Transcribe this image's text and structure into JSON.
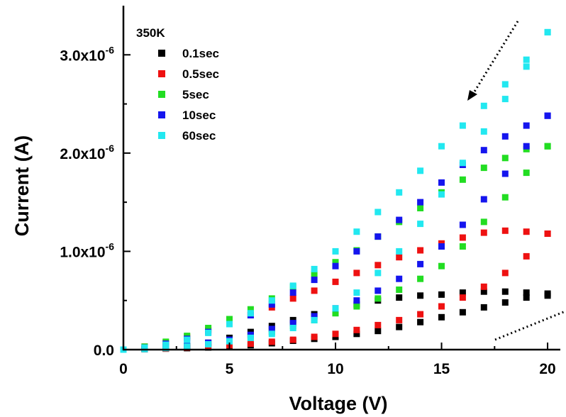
{
  "chart_data": {
    "type": "scatter",
    "xlabel": "Voltage (V)",
    "ylabel": "Current (A)",
    "xlim": [
      0,
      20.6
    ],
    "ylim": [
      0,
      3.5e-06
    ],
    "x_ticks": [
      {
        "value": 0,
        "label": "0"
      },
      {
        "value": 5,
        "label": "5"
      },
      {
        "value": 10,
        "label": "10"
      },
      {
        "value": 15,
        "label": "15"
      },
      {
        "value": 20,
        "label": "20"
      }
    ],
    "y_ticks": [
      {
        "value": 0,
        "label": "0.0",
        "exp": ""
      },
      {
        "value": 1e-06,
        "label": "1.0x10",
        "exp": "-6"
      },
      {
        "value": 2e-06,
        "label": "2.0x10",
        "exp": "-6"
      },
      {
        "value": 3e-06,
        "label": "3.0x10",
        "exp": "-6"
      }
    ],
    "legend_title": "350K",
    "legend_position": "top-left",
    "annotations": [
      "dotted arrow pointing down-left near top-right",
      "dotted line near bottom-right"
    ],
    "series": [
      {
        "name": "0.1sec",
        "color": "#000000",
        "forward": {
          "x": [
            0,
            1,
            2,
            3,
            4,
            5,
            6,
            7,
            8,
            9,
            10,
            11,
            12,
            13,
            14,
            15,
            16,
            17,
            18,
            19,
            20
          ],
          "y": [
            0,
            0.005,
            0.01,
            0.015,
            0.022,
            0.03,
            0.045,
            0.065,
            0.09,
            0.11,
            0.13,
            0.16,
            0.19,
            0.23,
            0.28,
            0.33,
            0.38,
            0.43,
            0.48,
            0.53,
            0.57
          ]
        },
        "reverse": {
          "x": [
            20,
            19,
            18,
            17,
            16,
            15,
            14,
            13,
            12,
            11,
            10,
            9,
            8,
            7,
            6,
            5,
            4,
            3,
            2,
            1,
            0
          ],
          "y": [
            0.55,
            0.58,
            0.59,
            0.59,
            0.58,
            0.56,
            0.55,
            0.53,
            0.5,
            0.46,
            0.41,
            0.36,
            0.3,
            0.24,
            0.18,
            0.12,
            0.07,
            0.035,
            0.015,
            0.005,
            0
          ]
        }
      },
      {
        "name": "0.5sec",
        "color": "#ee1111",
        "forward": {
          "x": [
            0,
            1,
            2,
            3,
            4,
            5,
            6,
            7,
            8,
            9,
            10,
            11,
            12,
            13,
            14,
            15,
            16,
            17,
            18,
            19,
            20
          ],
          "y": [
            0,
            0.005,
            0.01,
            0.02,
            0.03,
            0.045,
            0.06,
            0.08,
            0.1,
            0.13,
            0.16,
            0.2,
            0.25,
            0.3,
            0.36,
            0.44,
            0.53,
            0.64,
            0.78,
            0.95,
            1.18
          ]
        },
        "reverse": {
          "x": [
            20,
            19,
            18,
            17,
            16,
            15,
            14,
            13,
            12,
            11,
            10,
            9,
            8,
            7,
            6,
            5,
            4,
            3,
            2,
            1,
            0
          ],
          "y": [
            1.18,
            1.2,
            1.21,
            1.19,
            1.14,
            1.08,
            1.01,
            0.94,
            0.86,
            0.78,
            0.69,
            0.6,
            0.52,
            0.43,
            0.35,
            0.27,
            0.2,
            0.13,
            0.07,
            0.03,
            0
          ]
        }
      },
      {
        "name": "5sec",
        "color": "#22dd22",
        "forward": {
          "x": [
            0,
            1,
            2,
            3,
            4,
            5,
            6,
            7,
            8,
            9,
            10,
            11,
            12,
            13,
            14,
            15,
            16,
            17,
            18,
            19,
            20
          ],
          "y": [
            0,
            0.01,
            0.02,
            0.035,
            0.06,
            0.09,
            0.13,
            0.18,
            0.24,
            0.3,
            0.37,
            0.44,
            0.52,
            0.61,
            0.72,
            0.85,
            1.05,
            1.3,
            1.55,
            1.8,
            2.07
          ]
        },
        "reverse": {
          "x": [
            20,
            19,
            18,
            17,
            16,
            15,
            14,
            13,
            12,
            11,
            10,
            9,
            8,
            7,
            6,
            5,
            4,
            3,
            2,
            1,
            0
          ],
          "y": [
            2.07,
            2.04,
            1.95,
            1.85,
            1.73,
            1.6,
            1.44,
            1.3,
            1.15,
            1.01,
            0.89,
            0.77,
            0.64,
            0.52,
            0.41,
            0.31,
            0.22,
            0.14,
            0.08,
            0.03,
            0
          ]
        }
      },
      {
        "name": "10sec",
        "color": "#1515ee",
        "forward": {
          "x": [
            0,
            1,
            2,
            3,
            4,
            5,
            6,
            7,
            8,
            9,
            10,
            11,
            12,
            13,
            14,
            15,
            16,
            17,
            18,
            19,
            20
          ],
          "y": [
            0,
            0.01,
            0.02,
            0.04,
            0.07,
            0.1,
            0.15,
            0.21,
            0.27,
            0.34,
            0.42,
            0.5,
            0.6,
            0.72,
            0.87,
            1.05,
            1.27,
            1.53,
            1.79,
            2.07,
            2.38
          ]
        },
        "reverse": {
          "x": [
            20,
            19,
            18,
            17,
            16,
            15,
            14,
            13,
            12,
            11,
            10,
            9,
            8,
            7,
            6,
            5,
            4,
            3,
            2,
            1,
            0
          ],
          "y": [
            2.38,
            2.28,
            2.17,
            2.03,
            1.88,
            1.7,
            1.5,
            1.32,
            1.15,
            1.0,
            0.85,
            0.71,
            0.58,
            0.46,
            0.35,
            0.26,
            0.18,
            0.11,
            0.06,
            0.02,
            0
          ]
        }
      },
      {
        "name": "60sec",
        "color": "#22e8f0",
        "forward": {
          "x": [
            0,
            1,
            2,
            3,
            4,
            5,
            6,
            7,
            8,
            9,
            10,
            11,
            12,
            13,
            14,
            15,
            16,
            17,
            18,
            19,
            20
          ],
          "y": [
            0,
            0.005,
            0.015,
            0.03,
            0.055,
            0.085,
            0.12,
            0.16,
            0.22,
            0.3,
            0.42,
            0.58,
            0.78,
            1.0,
            1.28,
            1.58,
            1.9,
            2.22,
            2.55,
            2.88,
            3.23
          ]
        },
        "reverse": {
          "x": [
            20,
            19,
            18,
            17,
            16,
            15,
            14,
            13,
            12,
            11,
            10,
            9,
            8,
            7,
            6,
            5,
            4,
            3,
            2,
            1,
            0
          ],
          "y": [
            3.23,
            2.95,
            2.7,
            2.48,
            2.28,
            2.07,
            1.82,
            1.6,
            1.4,
            1.2,
            1.0,
            0.82,
            0.65,
            0.5,
            0.37,
            0.26,
            0.17,
            0.1,
            0.05,
            0.02,
            0
          ]
        }
      }
    ]
  }
}
